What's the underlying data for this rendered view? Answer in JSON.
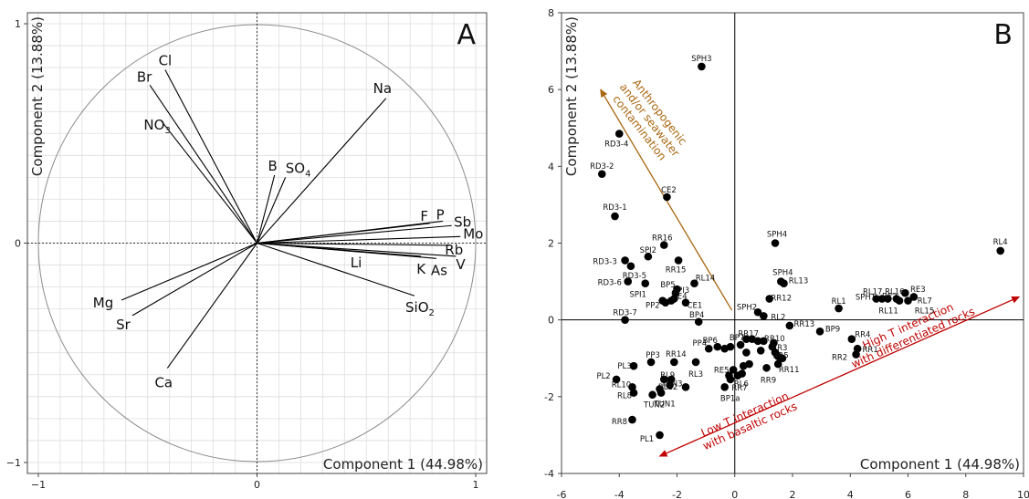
{
  "chart_data": [
    {
      "type": "scatter",
      "panel": "A",
      "xlabel": "Component 1 (44.98%)",
      "ylabel": "Component 2 (13.88%)",
      "xlim": [
        -1.05,
        1.05
      ],
      "ylim": [
        -1.05,
        1.05
      ],
      "x_ticks": [
        "−1",
        "0",
        "1"
      ],
      "y_ticks": [
        "−1",
        "0",
        "1"
      ],
      "grid": true,
      "unit_circle": true,
      "loadings": [
        {
          "label": "Cl",
          "x": -0.42,
          "y": 0.79
        },
        {
          "label": "Br",
          "x": -0.49,
          "y": 0.72
        },
        {
          "label": "NO",
          "sub": "3",
          "x": -0.44,
          "y": 0.56
        },
        {
          "label": "Na",
          "x": 0.59,
          "y": 0.66
        },
        {
          "label": "B",
          "x": 0.08,
          "y": 0.31
        },
        {
          "label": "SO",
          "sub": "4",
          "x": 0.13,
          "y": 0.3
        },
        {
          "label": "F",
          "x": 0.79,
          "y": 0.09
        },
        {
          "label": "P",
          "x": 0.85,
          "y": 0.1
        },
        {
          "label": "Sb",
          "x": 0.89,
          "y": 0.08
        },
        {
          "label": "Mo",
          "x": 0.93,
          "y": 0.03
        },
        {
          "label": "Rb",
          "x": 0.88,
          "y": -0.01
        },
        {
          "label": "V",
          "x": 0.91,
          "y": -0.06
        },
        {
          "label": "As",
          "x": 0.82,
          "y": -0.07
        },
        {
          "label": "K",
          "x": 0.75,
          "y": -0.06
        },
        {
          "label": "Li",
          "x": 0.47,
          "y": -0.04
        },
        {
          "label": "SiO",
          "sub": "2",
          "x": 0.72,
          "y": -0.24
        },
        {
          "label": "Mg",
          "x": -0.62,
          "y": -0.26
        },
        {
          "label": "Sr",
          "x": -0.57,
          "y": -0.33
        },
        {
          "label": "Ca",
          "x": -0.41,
          "y": -0.57
        }
      ]
    },
    {
      "type": "scatter",
      "panel": "B",
      "xlabel": "Component 1 (44.98%)",
      "ylabel": "Component 2 (13.88%)",
      "xlim": [
        -6,
        10
      ],
      "ylim": [
        -4,
        8
      ],
      "x_ticks": [
        -6,
        -4,
        -2,
        0,
        2,
        4,
        6,
        8,
        10
      ],
      "y_ticks": [
        -4,
        -2,
        0,
        2,
        4,
        6,
        8
      ],
      "grid": false,
      "annotations": [
        {
          "lines": [
            "Anthropogenic",
            "and/or seawater",
            "contamination"
          ],
          "color": "#a8660e"
        },
        {
          "lines": [
            "Low T interaction",
            "with basaltic rocks"
          ],
          "color": "#c00000"
        },
        {
          "lines": [
            "High T interaction",
            "with differentiated rocks"
          ],
          "color": "#c00000"
        }
      ],
      "points": [
        {
          "label": "SPH3",
          "x": -1.15,
          "y": 6.6
        },
        {
          "label": "RD3-4",
          "x": -4.0,
          "y": 4.85
        },
        {
          "label": "RD3-2",
          "x": -4.6,
          "y": 3.8
        },
        {
          "label": "CE2",
          "x": -2.35,
          "y": 3.2
        },
        {
          "label": "RD3-1",
          "x": -4.15,
          "y": 2.7
        },
        {
          "label": "SPH4",
          "x": 1.4,
          "y": 2.0
        },
        {
          "label": "RL4",
          "x": 9.2,
          "y": 1.8
        },
        {
          "label": "RR16",
          "x": -2.45,
          "y": 1.95
        },
        {
          "label": "SPI2",
          "x": -3.0,
          "y": 1.65
        },
        {
          "label": "RR15",
          "x": -1.95,
          "y": 1.55
        },
        {
          "label": "RD3-3",
          "x": -3.8,
          "y": 1.55
        },
        {
          "label": "RD3-5",
          "x": -3.6,
          "y": 1.4
        },
        {
          "label": "RD3-6",
          "x": -3.7,
          "y": 1.0
        },
        {
          "label": "SPI1",
          "x": -3.1,
          "y": 0.95
        },
        {
          "label": "RL14",
          "x": -1.4,
          "y": 0.95
        },
        {
          "label": "BP5",
          "x": -2.0,
          "y": 0.8
        },
        {
          "label": "SPI3",
          "x": -2.05,
          "y": 0.7
        },
        {
          "label": "CE4",
          "x": -2.1,
          "y": 0.55
        },
        {
          "label": "CE1",
          "x": -1.7,
          "y": 0.45
        },
        {
          "label": "PP2",
          "x": -2.4,
          "y": 0.45
        },
        {
          "label": "SPH4",
          "x": 1.6,
          "y": 1.0
        },
        {
          "label": "RL13",
          "x": 1.7,
          "y": 0.95
        },
        {
          "label": "RR12",
          "x": 1.2,
          "y": 0.55
        },
        {
          "label": "RL17",
          "x": 4.9,
          "y": 0.55
        },
        {
          "label": "SPH1",
          "x": 5.1,
          "y": 0.55
        },
        {
          "label": "RE2",
          "x": 5.3,
          "y": 0.55
        },
        {
          "label": "RL16",
          "x": 5.6,
          "y": 0.55
        },
        {
          "label": "RE3",
          "x": 5.9,
          "y": 0.7
        },
        {
          "label": "RL7",
          "x": 6.2,
          "y": 0.6
        },
        {
          "label": "RL11",
          "x": 5.7,
          "y": 0.5
        },
        {
          "label": "RL15",
          "x": 6.0,
          "y": 0.5
        },
        {
          "label": "RL1",
          "x": 3.6,
          "y": 0.3
        },
        {
          "label": "SPH2",
          "x": 0.8,
          "y": 0.2
        },
        {
          "label": "RL2",
          "x": 1.0,
          "y": 0.1
        },
        {
          "label": "RD3-7",
          "x": -3.8,
          "y": 0.0
        },
        {
          "label": "BP4",
          "x": -1.25,
          "y": -0.05
        },
        {
          "label": "RR13",
          "x": 1.9,
          "y": -0.15
        },
        {
          "label": "BP9",
          "x": 2.95,
          "y": -0.3
        },
        {
          "label": "RR17",
          "x": 0.6,
          "y": -0.5
        },
        {
          "label": "RR10",
          "x": 1.0,
          "y": -0.55
        },
        {
          "label": "BP6",
          "x": -0.6,
          "y": -0.7
        },
        {
          "label": "BP7",
          "x": 0.2,
          "y": -0.65
        },
        {
          "label": "PP4",
          "x": -0.9,
          "y": -0.75
        },
        {
          "label": "RR3",
          "x": 1.3,
          "y": -0.7
        },
        {
          "label": "RR5",
          "x": 1.4,
          "y": -0.85
        },
        {
          "label": "RR4",
          "x": 4.05,
          "y": -0.5
        },
        {
          "label": "RR1",
          "x": 4.25,
          "y": -0.75
        },
        {
          "label": "RR2",
          "x": 4.2,
          "y": -0.9
        },
        {
          "label": "PP3",
          "x": -2.9,
          "y": -1.1
        },
        {
          "label": "RR14",
          "x": -2.1,
          "y": -1.1
        },
        {
          "label": "RL3",
          "x": -1.35,
          "y": -1.1
        },
        {
          "label": "RE5",
          "x": -0.05,
          "y": -1.3
        },
        {
          "label": "RR11",
          "x": 1.5,
          "y": -1.15
        },
        {
          "label": "RR9",
          "x": 1.1,
          "y": -1.25
        },
        {
          "label": "PL3",
          "x": -3.5,
          "y": -1.2
        },
        {
          "label": "RL9",
          "x": -2.2,
          "y": -1.55
        },
        {
          "label": "RL6",
          "x": 0.1,
          "y": -1.45
        },
        {
          "label": "PL2",
          "x": -4.1,
          "y": -1.55
        },
        {
          "label": "RL12",
          "x": -2.25,
          "y": -1.7
        },
        {
          "label": "TUN3",
          "x": -1.7,
          "y": -1.75
        },
        {
          "label": "RR7",
          "x": -0.15,
          "y": -1.55
        },
        {
          "label": "BP1a",
          "x": -0.35,
          "y": -1.75
        },
        {
          "label": "RL10",
          "x": -3.55,
          "y": -1.75
        },
        {
          "label": "RL8",
          "x": -3.5,
          "y": -1.9
        },
        {
          "label": "TUN2",
          "x": -2.85,
          "y": -1.95
        },
        {
          "label": "TUN1",
          "x": -2.55,
          "y": -1.9
        },
        {
          "label": "RR8",
          "x": -3.55,
          "y": -2.6
        },
        {
          "label": "PL1",
          "x": -2.6,
          "y": -3.0
        }
      ],
      "extra_points": [
        {
          "x": -2.5,
          "y": 0.5
        },
        {
          "x": -2.2,
          "y": 0.5
        },
        {
          "x": 0.4,
          "y": -0.5
        },
        {
          "x": 0.8,
          "y": -0.55
        },
        {
          "x": 1.35,
          "y": -0.6
        },
        {
          "x": -0.35,
          "y": -0.75
        },
        {
          "x": -0.15,
          "y": -0.7
        },
        {
          "x": 0.4,
          "y": -0.85
        },
        {
          "x": 0.9,
          "y": -0.8
        },
        {
          "x": 1.5,
          "y": -0.95
        },
        {
          "x": 1.65,
          "y": -1.0
        },
        {
          "x": 0.3,
          "y": -1.2
        },
        {
          "x": 0.5,
          "y": -1.15
        },
        {
          "x": 0.25,
          "y": -1.4
        },
        {
          "x": -2.45,
          "y": -1.55
        },
        {
          "x": -0.2,
          "y": -1.45
        },
        {
          "x": -2.6,
          "y": -1.8
        }
      ]
    }
  ]
}
